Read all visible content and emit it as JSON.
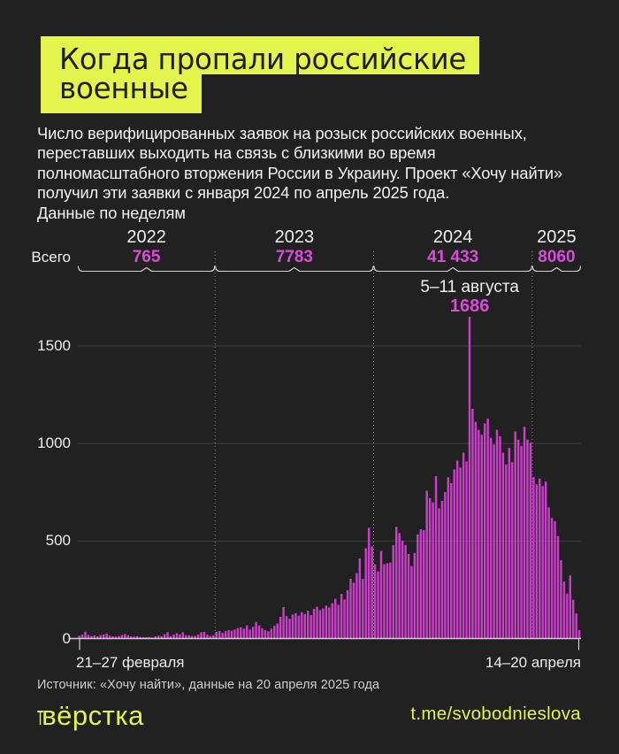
{
  "colors": {
    "background": "#212121",
    "accent_yellow": "#e3f44c",
    "bar_magenta": "#ca3eca",
    "value_magenta": "#dc4adc",
    "text_primary": "#f2f2f2",
    "text_muted": "#cfcfcf",
    "title_text": "#1e1e1e"
  },
  "title": {
    "lines": [
      "Когда пропали российские",
      "военные"
    ]
  },
  "subtitle": {
    "lines": [
      "Число верифицированных заявок на розыск российских военных,",
      "переставших выходить на связь с близкими во время",
      "полномасштабного вторжения России в Украину. Проект «Хочу найти»",
      "получил эти заявки с января 2024 по апрель 2025 года.",
      "Данные по неделям"
    ]
  },
  "header": {
    "total_label": "Всего"
  },
  "chart_data": {
    "type": "bar",
    "title": "Когда пропали российские военные",
    "yticks": [
      0,
      500,
      1000,
      1500
    ],
    "ylim": [
      0,
      1750
    ],
    "grid": true,
    "x_axis": {
      "first_week_label": "21–27 февраля",
      "last_week_label": "14–20 апреля"
    },
    "years": [
      {
        "year": "2022",
        "total": "765",
        "values": [
          15,
          20,
          35,
          18,
          13,
          16,
          11,
          18,
          21,
          25,
          15,
          11,
          10,
          12,
          18,
          23,
          16,
          11,
          10,
          12,
          8,
          7,
          7,
          8,
          5,
          11,
          14,
          12,
          22,
          32,
          12,
          20,
          27,
          22,
          32,
          17,
          16,
          13,
          14,
          20,
          32,
          34,
          20,
          13,
          17
        ]
      },
      {
        "year": "2023",
        "total": "7783",
        "values": [
          34,
          38,
          29,
          37,
          43,
          40,
          46,
          53,
          58,
          50,
          67,
          46,
          60,
          85,
          67,
          53,
          43,
          37,
          50,
          65,
          77,
          111,
          161,
          115,
          101,
          123,
          130,
          117,
          135,
          125,
          142,
          120,
          152,
          163,
          146,
          154,
          168,
          159,
          181,
          204,
          173,
          229,
          200,
          248,
          306,
          286,
          335,
          411,
          306,
          463,
          568,
          473
        ]
      },
      {
        "year": "2024",
        "total": "41 433",
        "values": [
          381,
          344,
          449,
          381,
          386,
          389,
          479,
          573,
          541,
          502,
          479,
          434,
          371,
          439,
          534,
          560,
          555,
          758,
          720,
          698,
          833,
          668,
          706,
          751,
          827,
          797,
          867,
          913,
          877,
          953,
          908,
          1686,
          1178,
          1111,
          1070,
          1045,
          1103,
          1128,
          1029,
          995,
          1070,
          1037,
          953,
          894,
          978,
          904,
          1062,
          1020,
          987,
          1086,
          1020,
          1004
        ]
      },
      {
        "year": "2025",
        "total": "8060",
        "values": [
          828,
          791,
          820,
          782,
          805,
          672,
          618,
          602,
          525,
          401,
          292,
          230,
          323,
          199,
          129,
          43
        ]
      }
    ],
    "annotation": {
      "label": "5–11 августа",
      "value": "1686",
      "year": "2024",
      "week_of_year": 32
    }
  },
  "source": {
    "text": "Источник: «Хочу найти», данные на 20 апреля 2025 года"
  },
  "footer": {
    "logo_mark": "т",
    "logo_text": "вёрстка",
    "handle": "t.me/svobodnieslova"
  }
}
